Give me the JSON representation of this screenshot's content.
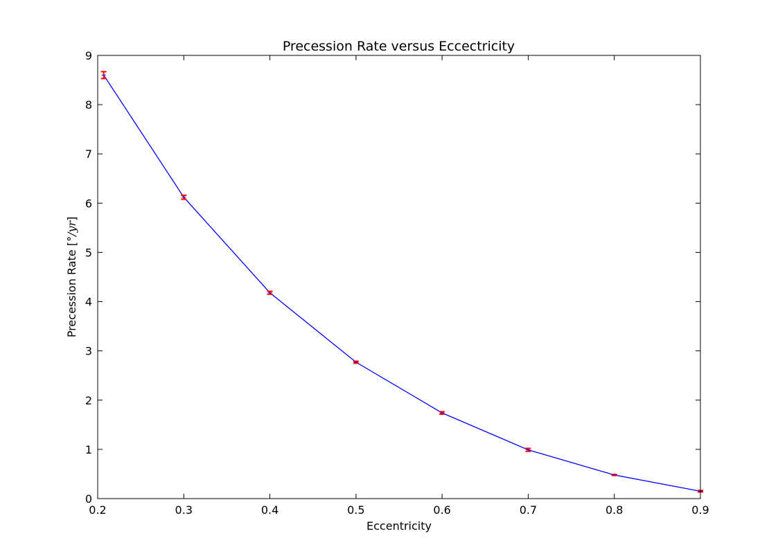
{
  "chart_data": {
    "type": "line",
    "title": "Precession Rate versus Eccectricity",
    "xlabel": "Eccentricity",
    "ylabel": "Precession Rate [°/yr]",
    "ylabel_parts": {
      "prefix": "Precession Rate [",
      "math": "°/yr",
      "suffix": "]"
    },
    "xlim": [
      0.2,
      0.9
    ],
    "ylim": [
      0,
      9
    ],
    "xticks": [
      "0.2",
      "0.3",
      "0.4",
      "0.5",
      "0.6",
      "0.7",
      "0.8",
      "0.9"
    ],
    "yticks": [
      "0",
      "1",
      "2",
      "3",
      "4",
      "5",
      "6",
      "7",
      "8",
      "9"
    ],
    "grid": false,
    "series": [
      {
        "x": [
          0.207,
          0.3,
          0.4,
          0.5,
          0.6,
          0.7,
          0.8,
          0.9
        ],
        "y": [
          8.6,
          6.12,
          4.18,
          2.77,
          1.74,
          0.99,
          0.48,
          0.15
        ],
        "yerr": [
          0.07,
          0.04,
          0.03,
          0.02,
          0.025,
          0.03,
          0.01,
          0.015
        ],
        "line_color": "#0000ff",
        "errorbar_color": "#ff0000"
      }
    ]
  }
}
